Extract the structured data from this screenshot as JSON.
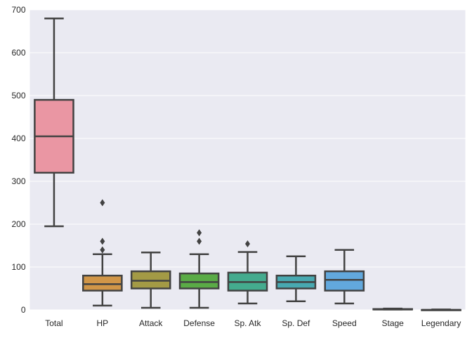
{
  "chart_data": {
    "type": "box",
    "title": "",
    "xlabel": "",
    "ylabel": "",
    "ylim": [
      0,
      700
    ],
    "yticks": [
      0,
      100,
      200,
      300,
      400,
      500,
      600,
      700
    ],
    "grid": true,
    "legend": "none",
    "background": "#eaeaf2",
    "line_color": "#424242",
    "categories": [
      "Total",
      "HP",
      "Attack",
      "Defense",
      "Sp. Atk",
      "Sp. Def",
      "Speed",
      "Stage",
      "Legendary"
    ],
    "boxes": [
      {
        "label": "Total",
        "whislo": 195,
        "q1": 320,
        "med": 405,
        "q3": 490,
        "whishi": 680,
        "fliers": [],
        "color": "#ea96a3"
      },
      {
        "label": "HP",
        "whislo": 10,
        "q1": 45,
        "med": 60,
        "q3": 80,
        "whishi": 130,
        "fliers": [
          140,
          160,
          250
        ],
        "color": "#d19648"
      },
      {
        "label": "Attack",
        "whislo": 5,
        "q1": 50,
        "med": 68,
        "q3": 90,
        "whishi": 134,
        "fliers": [],
        "color": "#a39a45"
      },
      {
        "label": "Defense",
        "whislo": 5,
        "q1": 50,
        "med": 65,
        "q3": 85,
        "whishi": 130,
        "fliers": [
          160,
          180
        ],
        "color": "#5aab46"
      },
      {
        "label": "Sp. Atk",
        "whislo": 15,
        "q1": 45,
        "med": 65,
        "q3": 87,
        "whishi": 135,
        "fliers": [
          154
        ],
        "color": "#44ab8e"
      },
      {
        "label": "Sp. Def",
        "whislo": 20,
        "q1": 50,
        "med": 65,
        "q3": 80,
        "whishi": 125,
        "fliers": [],
        "color": "#48a9b1"
      },
      {
        "label": "Speed",
        "whislo": 15,
        "q1": 45,
        "med": 70,
        "q3": 90,
        "whishi": 140,
        "fliers": [],
        "color": "#62a8dd"
      },
      {
        "label": "Stage",
        "whislo": 1,
        "q1": 1,
        "med": 1,
        "q3": 2,
        "whishi": 3,
        "fliers": [],
        "color": "#9d9fd8"
      },
      {
        "label": "Legendary",
        "whislo": 0,
        "q1": 0,
        "med": 0,
        "q3": 0,
        "whishi": 1,
        "fliers": [],
        "color": "#d993d0"
      }
    ]
  }
}
